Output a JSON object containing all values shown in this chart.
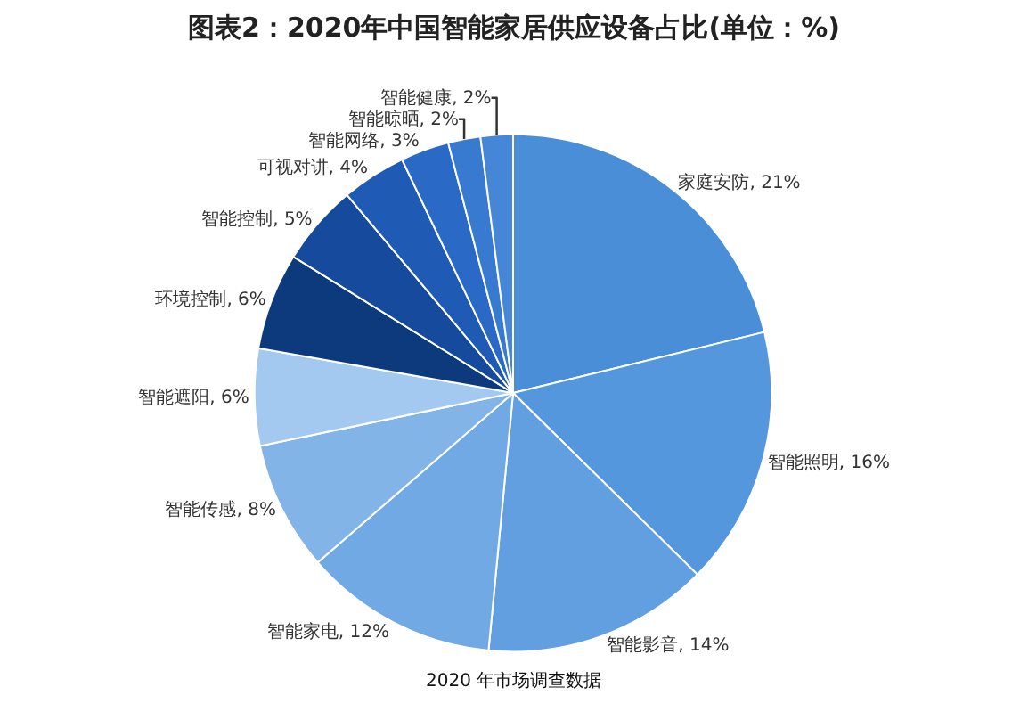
{
  "chart_data": {
    "type": "pie",
    "title": "图表2：2020年中国智能家居供应设备占比(单位：%)",
    "categories": [
      "家庭安防",
      "智能照明",
      "智能影音",
      "智能家电",
      "智能传感",
      "智能遮阳",
      "环境控制",
      "智能控制",
      "可视对讲",
      "智能网络",
      "智能晾晒",
      "智能健康"
    ],
    "values": [
      21,
      16,
      14,
      12,
      8,
      6,
      6,
      5,
      4,
      3,
      2,
      2
    ],
    "value_labels": [
      "21%",
      "16%",
      "14%",
      "12%",
      "8%",
      "6%",
      "6%",
      "5%",
      "4%",
      "3%",
      "2%",
      "2%"
    ],
    "colors": [
      "#4a8ed8",
      "#5597dc",
      "#629fe0",
      "#70a9e4",
      "#82b4e8",
      "#a4c9f0",
      "#0d3a7c",
      "#164a9c",
      "#1f5ab4",
      "#2b69c6",
      "#377ad0",
      "#4586d6"
    ],
    "annotations": [
      "2020 年市场调查数据"
    ],
    "legend": false
  }
}
